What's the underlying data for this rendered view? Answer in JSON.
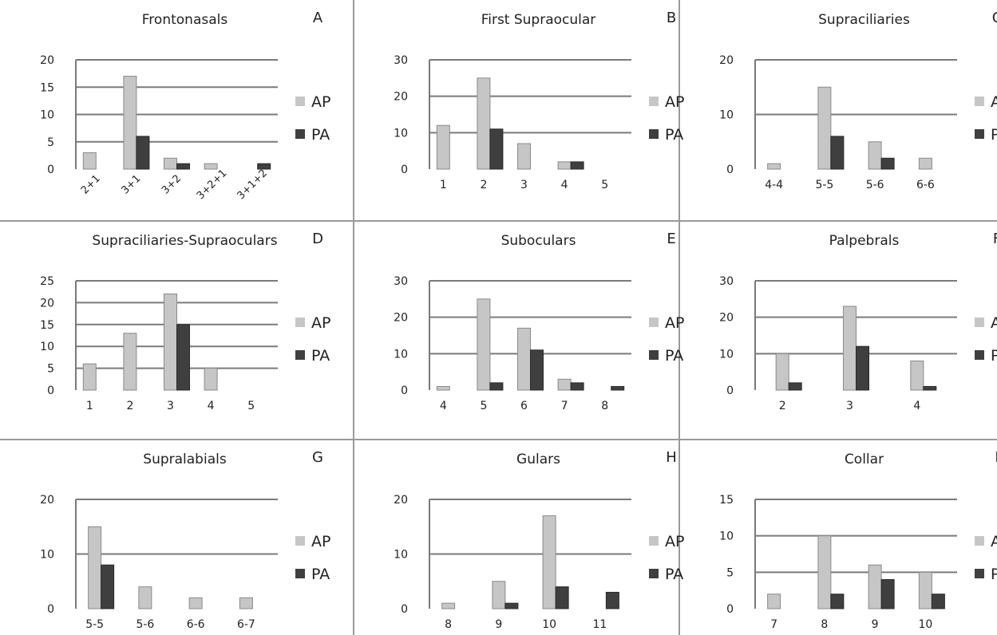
{
  "colors": {
    "AP": "#c6c6c6",
    "PA": "#3f3f3f",
    "gridline": "#7a7a7a",
    "panel_border": "#9a9a9a"
  },
  "legend_placement": "right",
  "chart_data": [
    {
      "id": "A",
      "letter": "A",
      "type": "bar",
      "title": "Frontonasals",
      "categories": [
        "2+1",
        "3+1",
        "3+2",
        "3+2+1",
        "3+1+2"
      ],
      "category_label_rotation": "diagonal",
      "series": [
        {
          "name": "AP",
          "values": [
            3,
            17,
            2,
            1,
            0
          ]
        },
        {
          "name": "PA",
          "values": [
            0,
            6,
            1,
            0,
            1
          ]
        }
      ],
      "ylim": [
        0,
        20
      ],
      "yticks": [
        0,
        5,
        10,
        15,
        20
      ],
      "grid": true
    },
    {
      "id": "B",
      "letter": "B",
      "type": "bar",
      "title": "First Supraocular",
      "categories": [
        "1",
        "2",
        "3",
        "4",
        "5"
      ],
      "series": [
        {
          "name": "AP",
          "values": [
            12,
            25,
            7,
            2,
            0
          ]
        },
        {
          "name": "PA",
          "values": [
            0,
            11,
            0,
            2,
            0
          ]
        }
      ],
      "ylim": [
        0,
        30
      ],
      "yticks": [
        0,
        10,
        20,
        30
      ],
      "grid": true
    },
    {
      "id": "C",
      "letter": "C",
      "type": "bar",
      "title": "Supraciliaries",
      "categories": [
        "4-4",
        "5-5",
        "5-6",
        "6-6"
      ],
      "series": [
        {
          "name": "AP",
          "values": [
            1,
            15,
            5,
            2
          ]
        },
        {
          "name": "PA",
          "values": [
            0,
            6,
            2,
            0
          ]
        }
      ],
      "ylim": [
        0,
        20
      ],
      "yticks": [
        0,
        10,
        20
      ],
      "grid": true
    },
    {
      "id": "D",
      "letter": "D",
      "type": "bar",
      "title": "Supraciliaries-Supraoculars",
      "categories": [
        "1",
        "2",
        "3",
        "4",
        "5"
      ],
      "series": [
        {
          "name": "AP",
          "values": [
            6,
            13,
            22,
            5,
            0
          ]
        },
        {
          "name": "PA",
          "values": [
            0,
            0,
            15,
            0,
            0
          ]
        }
      ],
      "ylim": [
        0,
        25
      ],
      "yticks": [
        0,
        5,
        10,
        15,
        20,
        25
      ],
      "grid": true
    },
    {
      "id": "E",
      "letter": "E",
      "type": "bar",
      "title": "Suboculars",
      "categories": [
        "4",
        "5",
        "6",
        "7",
        "8"
      ],
      "series": [
        {
          "name": "AP",
          "values": [
            1,
            25,
            17,
            3,
            0
          ]
        },
        {
          "name": "PA",
          "values": [
            0,
            2,
            11,
            2,
            1
          ]
        }
      ],
      "ylim": [
        0,
        30
      ],
      "yticks": [
        0,
        10,
        20,
        30
      ],
      "grid": true
    },
    {
      "id": "F",
      "letter": "F",
      "type": "bar",
      "title": "Palpebrals",
      "categories": [
        "2",
        "3",
        "4"
      ],
      "series": [
        {
          "name": "AP",
          "values": [
            10,
            23,
            8
          ]
        },
        {
          "name": "PA",
          "values": [
            2,
            12,
            1
          ]
        }
      ],
      "ylim": [
        0,
        30
      ],
      "yticks": [
        0,
        10,
        20,
        30
      ],
      "grid": true
    },
    {
      "id": "G",
      "letter": "G",
      "type": "bar",
      "title": "Supralabials",
      "categories": [
        "5-5",
        "5-6",
        "6-6",
        "6-7"
      ],
      "series": [
        {
          "name": "AP",
          "values": [
            15,
            4,
            2,
            2
          ]
        },
        {
          "name": "PA",
          "values": [
            8,
            0,
            0,
            0
          ]
        }
      ],
      "ylim": [
        0,
        20
      ],
      "yticks": [
        0,
        10,
        20
      ],
      "grid": true
    },
    {
      "id": "H",
      "letter": "H",
      "type": "bar",
      "title": "Gulars",
      "categories": [
        "8",
        "9",
        "10",
        "11"
      ],
      "series": [
        {
          "name": "AP",
          "values": [
            1,
            5,
            17,
            0
          ]
        },
        {
          "name": "PA",
          "values": [
            0,
            1,
            4,
            3
          ]
        }
      ],
      "ylim": [
        0,
        20
      ],
      "yticks": [
        0,
        10,
        20
      ],
      "grid": true
    },
    {
      "id": "I",
      "letter": "I",
      "type": "bar",
      "title": "Collar",
      "categories": [
        "7",
        "8",
        "9",
        "10"
      ],
      "series": [
        {
          "name": "AP",
          "values": [
            2,
            10,
            6,
            5
          ]
        },
        {
          "name": "PA",
          "values": [
            0,
            2,
            4,
            2
          ]
        }
      ],
      "ylim": [
        0,
        15
      ],
      "yticks": [
        0,
        5,
        10,
        15
      ],
      "grid": true
    }
  ]
}
